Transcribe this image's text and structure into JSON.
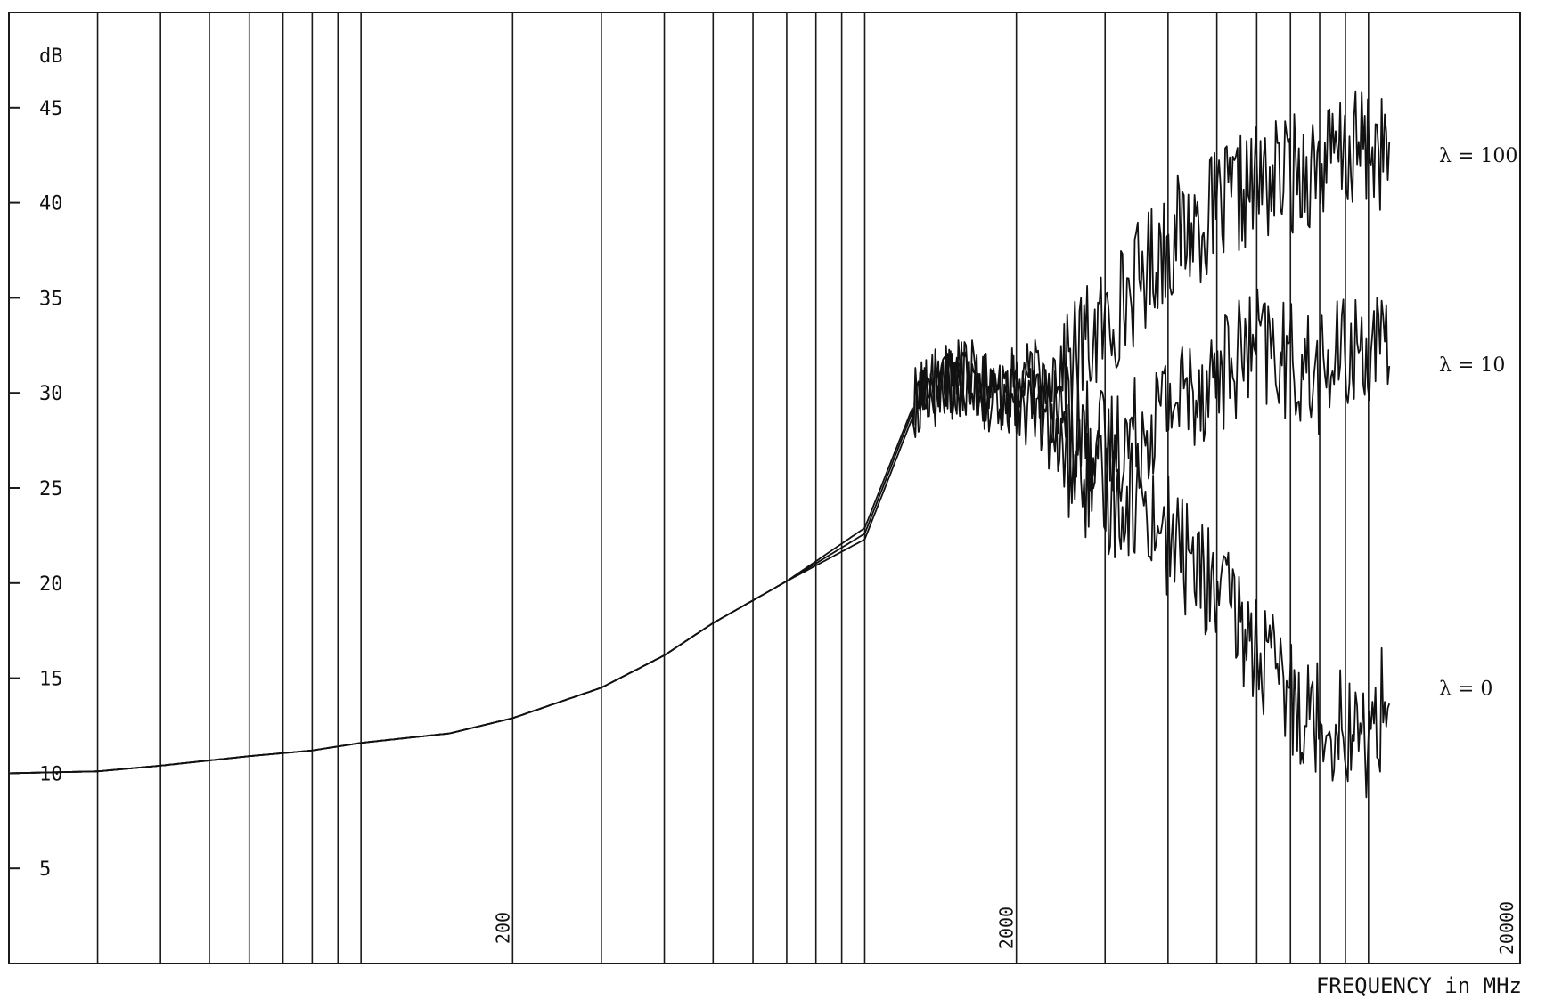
{
  "chart_data": {
    "type": "line",
    "ylabel": "dB",
    "xlabel": "FREQUENCY in MHz",
    "x_scale": "log",
    "xlim": [
      20,
      20000
    ],
    "ylim": [
      0,
      50
    ],
    "grid": true,
    "y_ticks": [
      {
        "value": 5,
        "label": "5"
      },
      {
        "value": 10,
        "label": "10"
      },
      {
        "value": 15,
        "label": "15"
      },
      {
        "value": 20,
        "label": "20"
      },
      {
        "value": 25,
        "label": "25"
      },
      {
        "value": 30,
        "label": "30"
      },
      {
        "value": 35,
        "label": "35"
      },
      {
        "value": 40,
        "label": "40"
      },
      {
        "value": 45,
        "label": "45"
      }
    ],
    "x_ticks": [
      {
        "value": 200,
        "label": "200"
      },
      {
        "value": 2000,
        "label": "2000"
      },
      {
        "value": 20000,
        "label": "20000"
      }
    ],
    "x_gridlines": [
      30,
      40,
      50,
      60,
      70,
      80,
      90,
      100,
      200,
      300,
      400,
      500,
      600,
      700,
      800,
      900,
      1000,
      2000,
      3000,
      4000,
      5000,
      6000,
      7000,
      8000,
      9000,
      10000,
      20000
    ],
    "series": [
      {
        "name": "λ = 100",
        "x": [
          20,
          30,
          40,
          60,
          80,
          100,
          150,
          200,
          300,
          400,
          500,
          700,
          1000,
          1300,
          1600,
          1800,
          2000,
          2300,
          2600,
          3000,
          3500,
          4000,
          5000,
          6000,
          7000,
          8000,
          9000,
          10000,
          11000
        ],
        "y": [
          10.0,
          10.1,
          10.4,
          10.9,
          11.2,
          11.6,
          12.1,
          12.9,
          14.5,
          16.2,
          17.9,
          20.1,
          22.9,
          30.5,
          31.2,
          30.0,
          30.5,
          31.0,
          32.0,
          33.5,
          36.0,
          38.0,
          39.5,
          41.0,
          41.5,
          42.0,
          42.5,
          43.0,
          42.5
        ]
      },
      {
        "name": "λ = 10",
        "x": [
          20,
          30,
          40,
          60,
          80,
          100,
          150,
          200,
          300,
          400,
          500,
          700,
          1000,
          1300,
          1600,
          1800,
          2000,
          2300,
          2600,
          3000,
          3500,
          4000,
          5000,
          6000,
          7000,
          8000,
          9000,
          10000,
          11000
        ],
        "y": [
          10.0,
          10.1,
          10.4,
          10.9,
          11.2,
          11.6,
          12.1,
          12.9,
          14.5,
          16.2,
          17.9,
          20.1,
          22.6,
          30.3,
          31.0,
          29.8,
          30.2,
          29.5,
          28.5,
          27.0,
          28.0,
          29.5,
          31.0,
          32.5,
          31.5,
          31.0,
          32.0,
          32.5,
          31.5
        ]
      },
      {
        "name": "λ = 0",
        "x": [
          20,
          30,
          40,
          60,
          80,
          100,
          150,
          200,
          300,
          400,
          500,
          700,
          1000,
          1300,
          1600,
          1800,
          2000,
          2300,
          2600,
          3000,
          3500,
          4000,
          5000,
          6000,
          7000,
          8000,
          9000,
          10000,
          11000
        ],
        "y": [
          10.0,
          10.1,
          10.4,
          10.9,
          11.2,
          11.6,
          12.1,
          12.9,
          14.5,
          16.2,
          17.9,
          20.1,
          22.3,
          30.0,
          30.8,
          29.5,
          29.8,
          28.0,
          26.0,
          24.5,
          24.5,
          22.5,
          19.5,
          16.5,
          14.0,
          13.0,
          12.5,
          11.5,
          14.5
        ]
      }
    ]
  }
}
